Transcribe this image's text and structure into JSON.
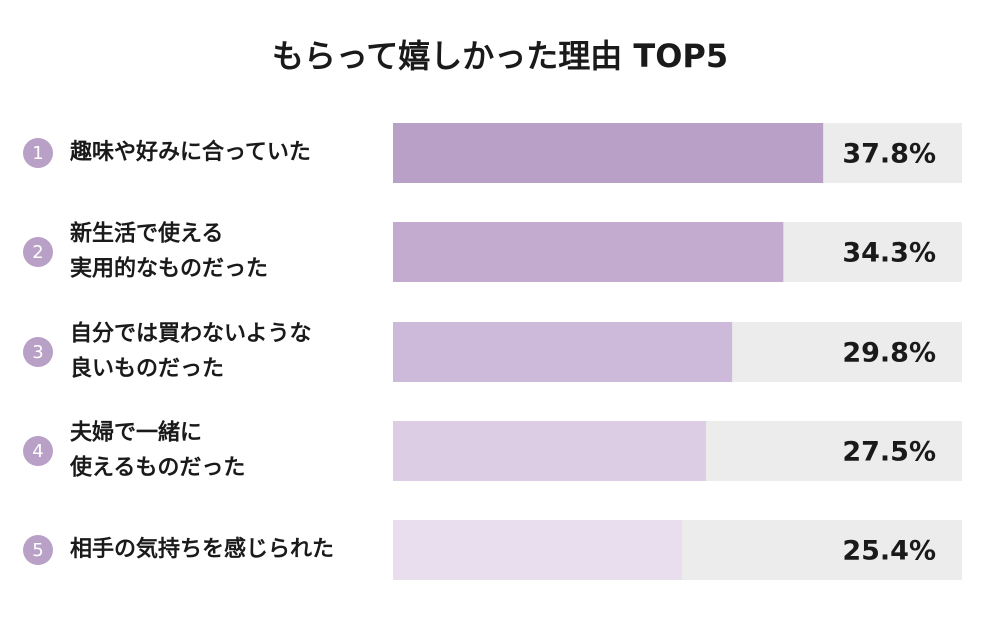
{
  "chart_data": {
    "type": "hbar",
    "title": "もらって嬉しかった理由 TOP5",
    "ranks": [
      1,
      2,
      3,
      4,
      5
    ],
    "categories": [
      [
        "趣味や好みに合っていた"
      ],
      [
        "新生活で使える",
        "実用的なものだった"
      ],
      [
        "自分では買わないような",
        "良いものだった"
      ],
      [
        "夫婦で一緒に",
        "使えるものだった"
      ],
      [
        "相手の気持ちを感じられた"
      ]
    ],
    "values": [
      37.8,
      34.3,
      29.8,
      27.5,
      25.4
    ],
    "value_labels": [
      "37.8%",
      "34.3%",
      "29.8%",
      "27.5%",
      "25.4%"
    ],
    "colors": [
      "#b9a0c6",
      "#c3aacf",
      "#cdb9d9",
      "#dccde4",
      "#e8deee"
    ],
    "track_color": "#ececec",
    "rank_color": "#b9a0c6",
    "xlim": [
      0,
      50
    ]
  }
}
